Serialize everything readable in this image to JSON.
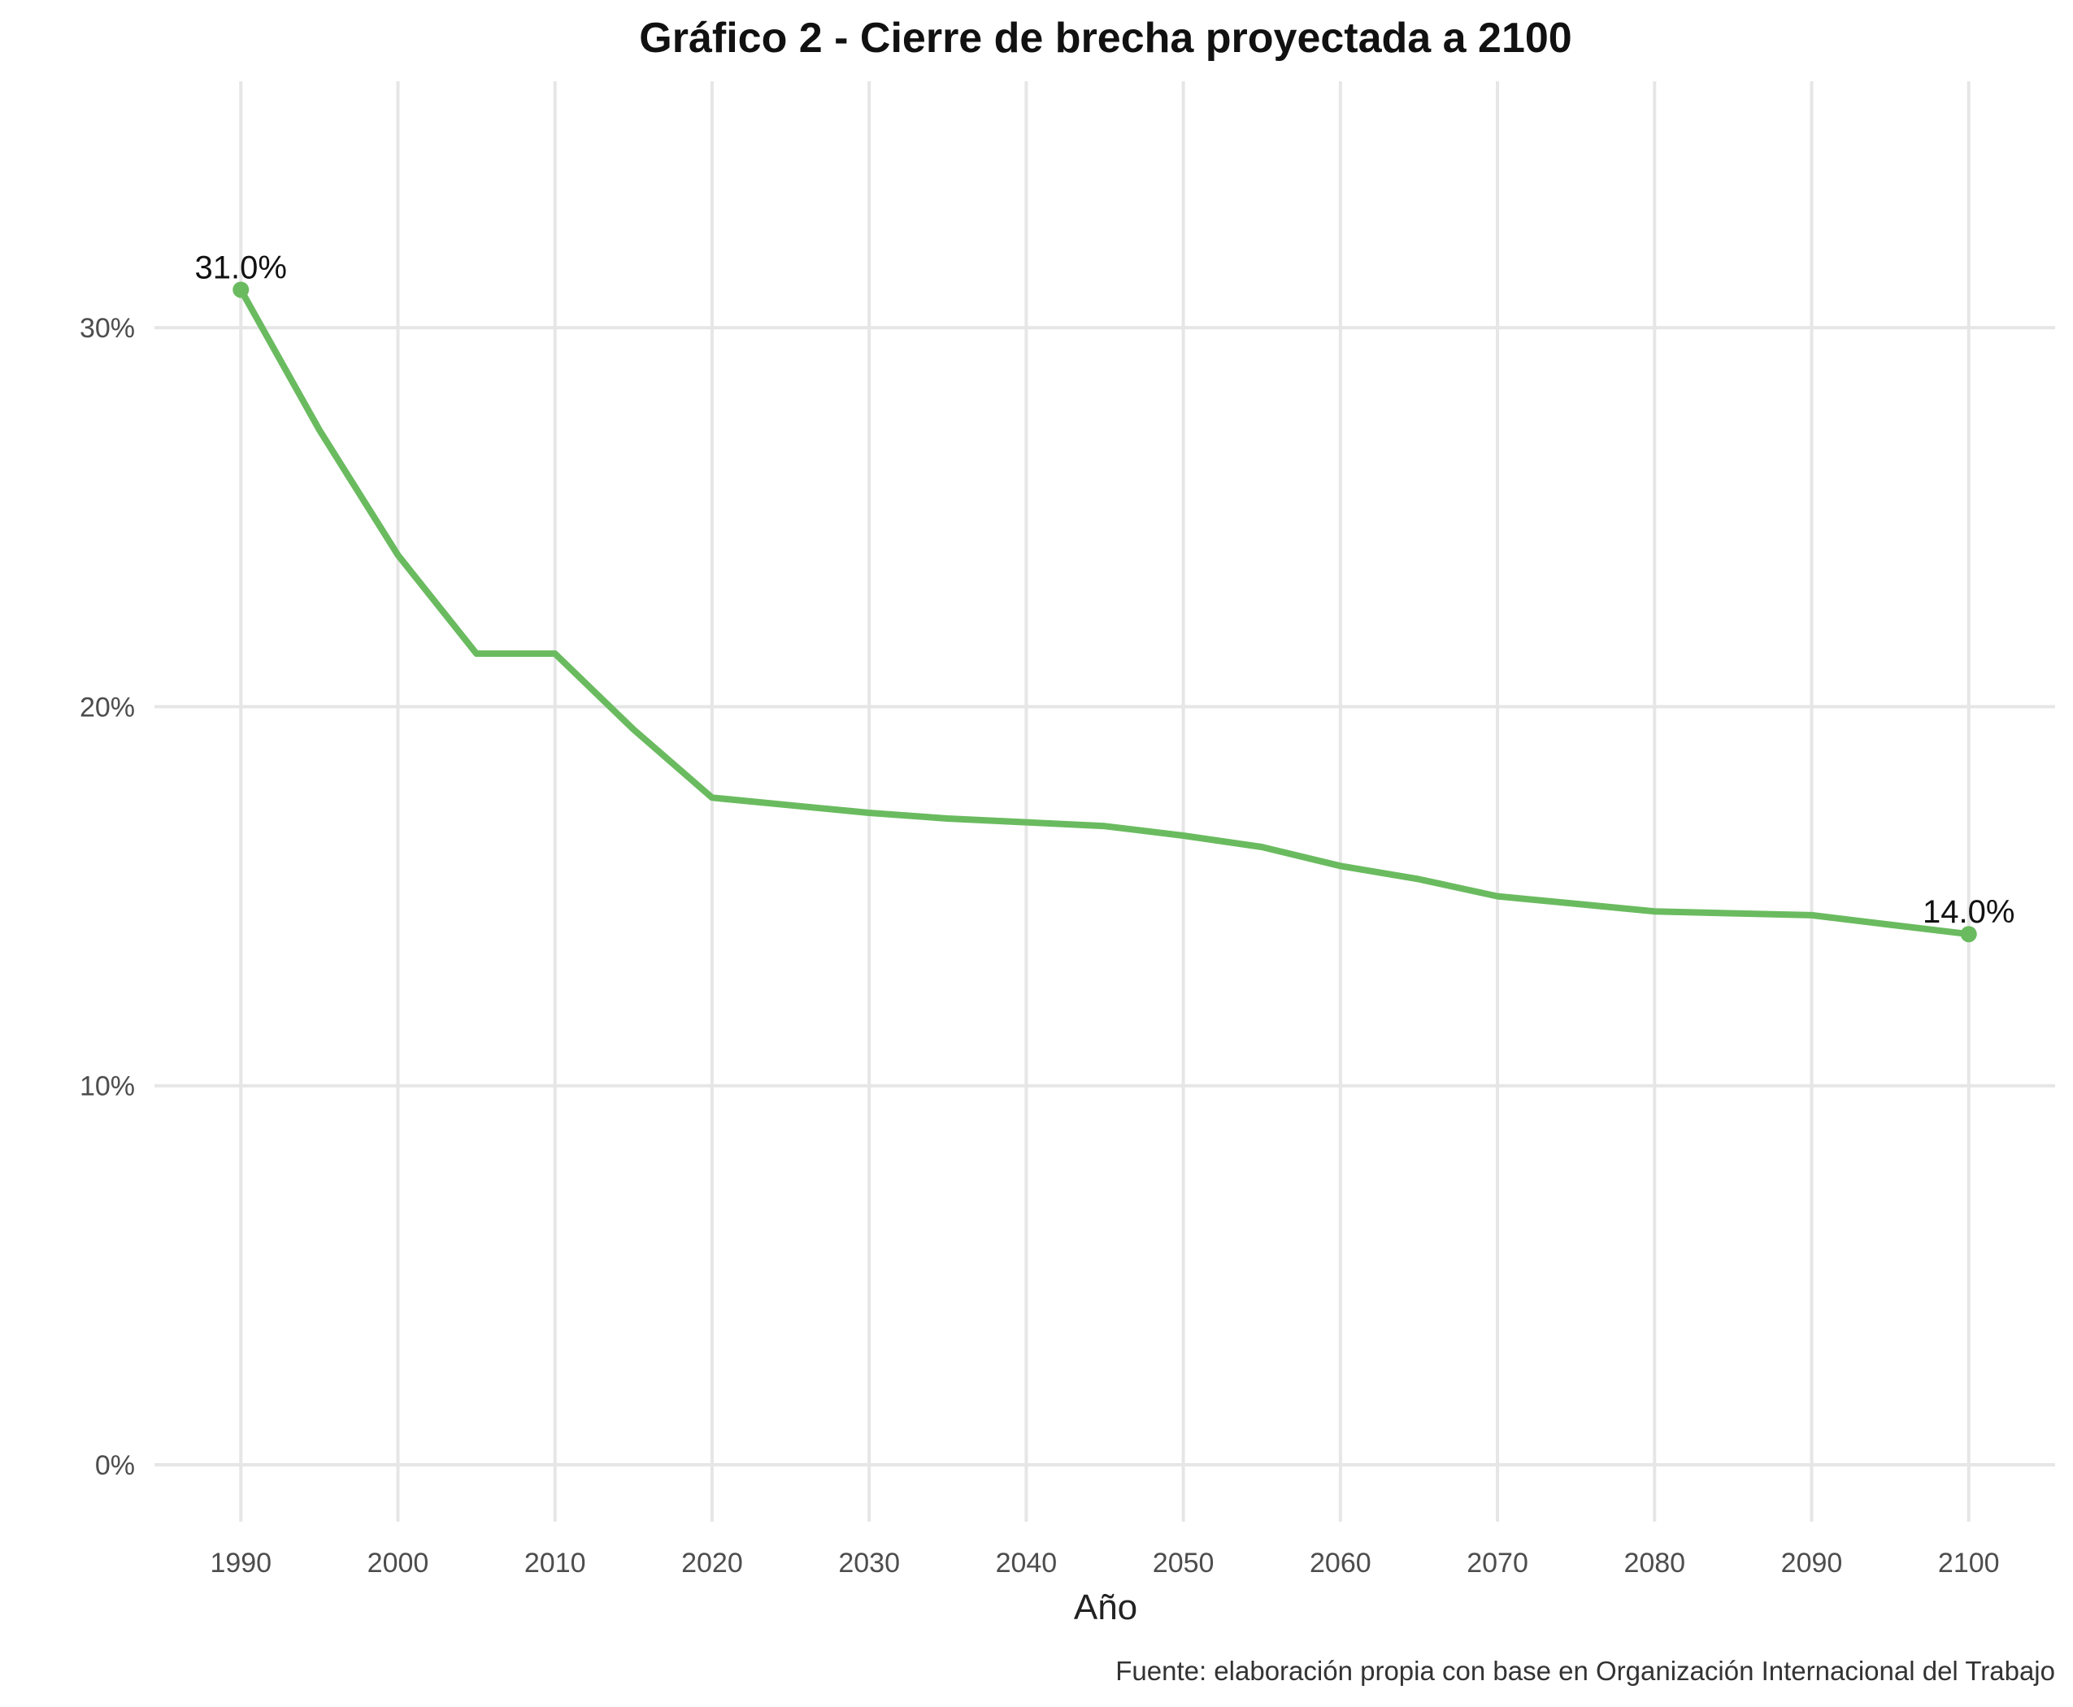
{
  "chart_data": {
    "type": "line",
    "title": "Gráfico 2 - Cierre de brecha proyectada a 2100",
    "xlabel": "Año",
    "ylabel": "",
    "caption": "Fuente: elaboración propia con base en Organización Internacional del Trabajo",
    "x_ticks": [
      1990,
      2000,
      2010,
      2020,
      2030,
      2040,
      2050,
      2060,
      2070,
      2080,
      2090,
      2100
    ],
    "y_ticks": [
      0,
      10,
      20,
      30
    ],
    "y_tick_labels": [
      "0%",
      "10%",
      "20%",
      "30%"
    ],
    "xlim": [
      1984.5,
      2105.5
    ],
    "ylim": [
      -1.5,
      36.5
    ],
    "grid": true,
    "line_color": "#6abb5f",
    "series": [
      {
        "x": [
          1990,
          1995,
          2000,
          2005,
          2010,
          2015,
          2020,
          2025,
          2030,
          2035,
          2040,
          2045,
          2050,
          2055,
          2060,
          2065,
          2070,
          2075,
          2080,
          2085,
          2090,
          2095,
          2100
        ],
        "values": [
          31.0,
          27.3,
          24.0,
          21.4,
          21.4,
          19.4,
          17.6,
          17.4,
          17.2,
          17.05,
          16.95,
          16.85,
          16.6,
          16.3,
          15.8,
          15.45,
          15.0,
          14.8,
          14.6,
          14.55,
          14.5,
          14.25,
          14.0
        ]
      }
    ],
    "point_labels": [
      {
        "x": 1990,
        "y": 31.0,
        "text": "31.0%"
      },
      {
        "x": 2100,
        "y": 14.0,
        "text": "14.0%"
      }
    ]
  }
}
